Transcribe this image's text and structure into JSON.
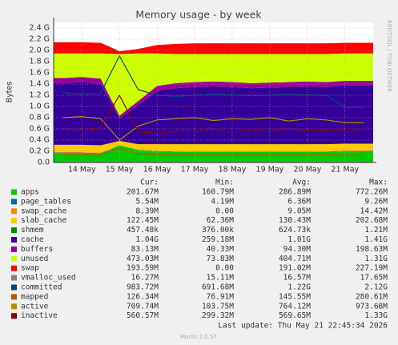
{
  "chart_data": {
    "type": "area",
    "title": "Memory usage - by week",
    "y_label": "Bytes",
    "side_text": "RRDTOOL / TOBI OETIKER",
    "categories": [
      null,
      "14 May",
      null,
      "15 May",
      null,
      "16 May",
      null,
      "17 May",
      null,
      "18 May",
      null,
      "19 May",
      null,
      "20 May",
      null,
      "21 May",
      null
    ],
    "ylim": [
      0,
      2.5
    ],
    "yticks": [
      {
        "value": 0,
        "label": "0.0"
      },
      {
        "value": 0.2,
        "label": "0.2 G"
      },
      {
        "value": 0.4,
        "label": "0.4 G"
      },
      {
        "value": 0.6,
        "label": "0.6 G"
      },
      {
        "value": 0.8,
        "label": "0.8 G"
      },
      {
        "value": 1.0,
        "label": "1.0 G"
      },
      {
        "value": 1.2,
        "label": "1.2 G"
      },
      {
        "value": 1.4,
        "label": "1.4 G"
      },
      {
        "value": 1.6,
        "label": "1.6 G"
      },
      {
        "value": 1.8,
        "label": "1.8 G"
      },
      {
        "value": 2.0,
        "label": "2.0 G"
      },
      {
        "value": 2.2,
        "label": "2.2 G"
      },
      {
        "value": 2.4,
        "label": "2.4 G"
      }
    ],
    "grid": true,
    "stats_header": [
      "Cur:",
      "Min:",
      "Avg:",
      "Max:"
    ],
    "series": [
      {
        "name": "apps",
        "color": "#00cc00",
        "style": "area",
        "stats": [
          "201.67M",
          "160.79M",
          "286.89M",
          "772.26M"
        ],
        "values": [
          0.17,
          0.17,
          0.16,
          0.3,
          0.22,
          0.2,
          0.19,
          0.19,
          0.19,
          0.19,
          0.19,
          0.19,
          0.19,
          0.19,
          0.19,
          0.2,
          0.2
        ]
      },
      {
        "name": "page_tables",
        "color": "#0066b3",
        "style": "area",
        "stats": [
          "5.54M",
          "4.19M",
          "6.36M",
          "9.26M"
        ],
        "values": [
          0.006,
          0.006,
          0.006,
          0.006,
          0.006,
          0.006,
          0.006,
          0.006,
          0.006,
          0.006,
          0.006,
          0.006,
          0.006,
          0.006,
          0.006,
          0.006,
          0.006
        ]
      },
      {
        "name": "swap_cache",
        "color": "#ff8000",
        "style": "area",
        "stats": [
          "8.39M",
          "0.00",
          "9.05M",
          "14.42M"
        ],
        "values": [
          0.01,
          0.01,
          0.01,
          0,
          0,
          0,
          0,
          0,
          0,
          0,
          0,
          0,
          0,
          0,
          0,
          0.01,
          0.01
        ]
      },
      {
        "name": "slab_cache",
        "color": "#ffcc00",
        "style": "area",
        "stats": [
          "122.45M",
          "62.36M",
          "130.43M",
          "202.68M"
        ],
        "values": [
          0.13,
          0.13,
          0.13,
          0.08,
          0.1,
          0.12,
          0.13,
          0.13,
          0.13,
          0.13,
          0.13,
          0.13,
          0.13,
          0.13,
          0.13,
          0.12,
          0.12
        ]
      },
      {
        "name": "shmem",
        "color": "#008f00",
        "style": "area",
        "stats": [
          "457.48k",
          "376.00k",
          "624.73k",
          "1.21M"
        ],
        "values": [
          0.0006,
          0.0006,
          0.0006,
          0.0006,
          0.0006,
          0.0006,
          0.0006,
          0.0006,
          0.0006,
          0.0006,
          0.0006,
          0.0006,
          0.0006,
          0.0006,
          0.0006,
          0.0006,
          0.0006
        ]
      },
      {
        "name": "cache",
        "color": "#330099",
        "style": "area",
        "stats": [
          "1.04G",
          "259.18M",
          "1.01G",
          "1.41G"
        ],
        "values": [
          1.1,
          1.12,
          1.1,
          0.4,
          0.7,
          0.95,
          1.0,
          1.02,
          1.03,
          1.02,
          1.0,
          1.01,
          1.02,
          1.03,
          1.02,
          1.04,
          1.04
        ]
      },
      {
        "name": "buffers",
        "color": "#990099",
        "style": "area",
        "stats": [
          "83.13M",
          "40.33M",
          "94.30M",
          "198.63M"
        ],
        "values": [
          0.09,
          0.09,
          0.09,
          0.05,
          0.07,
          0.09,
          0.09,
          0.09,
          0.09,
          0.09,
          0.09,
          0.09,
          0.09,
          0.09,
          0.09,
          0.08,
          0.08
        ]
      },
      {
        "name": "unused",
        "color": "#ccff00",
        "style": "area",
        "stats": [
          "473.03M",
          "73.83M",
          "404.71M",
          "1.31G"
        ],
        "values": [
          0.44,
          0.42,
          0.45,
          1.1,
          0.85,
          0.58,
          0.52,
          0.5,
          0.49,
          0.5,
          0.52,
          0.51,
          0.5,
          0.49,
          0.5,
          0.49,
          0.49
        ]
      },
      {
        "name": "swap",
        "color": "#ff0000",
        "style": "area",
        "stats": [
          "193.59M",
          "0.00",
          "191.02M",
          "227.19M"
        ],
        "values": [
          0.2,
          0.2,
          0.19,
          0.05,
          0.08,
          0.15,
          0.18,
          0.19,
          0.19,
          0.19,
          0.19,
          0.19,
          0.19,
          0.19,
          0.19,
          0.19,
          0.19
        ]
      },
      {
        "name": "vmalloc_used",
        "color": "#808080",
        "style": "line",
        "stats": [
          "16.27M",
          "15.11M",
          "16.57M",
          "17.65M"
        ],
        "values": [
          0.016,
          0.016,
          0.016,
          0.016,
          0.016,
          0.016,
          0.016,
          0.016,
          0.016,
          0.016,
          0.016,
          0.016,
          0.016,
          0.016,
          0.016,
          0.016,
          0.016
        ]
      },
      {
        "name": "committed",
        "color": "#00487d",
        "style": "line",
        "stats": [
          "983.72M",
          "691.68M",
          "1.22G",
          "2.12G"
        ],
        "values": [
          1.25,
          1.22,
          1.24,
          1.9,
          1.3,
          1.2,
          1.18,
          1.2,
          1.22,
          1.21,
          1.19,
          1.2,
          1.22,
          1.21,
          1.2,
          0.98,
          0.98
        ]
      },
      {
        "name": "mapped",
        "color": "#b35a00",
        "style": "line",
        "stats": [
          "126.34M",
          "76.91M",
          "145.55M",
          "280.61M"
        ],
        "values": [
          0.14,
          0.14,
          0.14,
          0.25,
          0.16,
          0.14,
          0.14,
          0.14,
          0.14,
          0.14,
          0.14,
          0.14,
          0.14,
          0.14,
          0.14,
          0.13,
          0.13
        ]
      },
      {
        "name": "active",
        "color": "#b38f00",
        "style": "line",
        "stats": [
          "709.74M",
          "103.75M",
          "764.12M",
          "973.68M"
        ],
        "values": [
          0.8,
          0.82,
          0.78,
          0.4,
          0.65,
          0.76,
          0.78,
          0.8,
          0.75,
          0.78,
          0.77,
          0.8,
          0.74,
          0.78,
          0.76,
          0.71,
          0.71
        ]
      },
      {
        "name": "inactive",
        "color": "#8f0000",
        "style": "line",
        "stats": [
          "560.57M",
          "299.32M",
          "569.65M",
          "1.33G"
        ],
        "values": [
          0.6,
          0.58,
          0.62,
          1.2,
          0.55,
          0.52,
          0.56,
          0.55,
          0.6,
          0.54,
          0.58,
          0.55,
          0.6,
          0.56,
          0.58,
          0.56,
          0.56
        ]
      }
    ],
    "last_update": "Last update: Thu May 21 22:45:34 2026",
    "footer": "Munin 2.0.57"
  }
}
